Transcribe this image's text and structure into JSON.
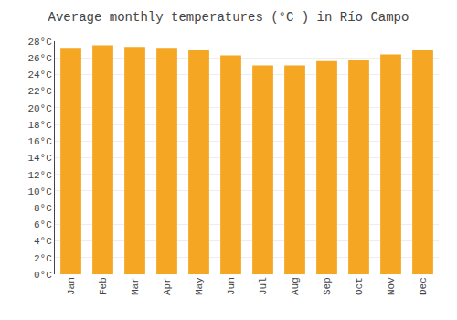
{
  "chart_data": {
    "type": "bar",
    "title": "Average monthly temperatures (°C ) in Río Campo",
    "categories": [
      "Jan",
      "Feb",
      "Mar",
      "Apr",
      "May",
      "Jun",
      "Jul",
      "Aug",
      "Sep",
      "Oct",
      "Nov",
      "Dec"
    ],
    "values": [
      27.1,
      27.5,
      27.3,
      27.1,
      26.9,
      26.3,
      25.1,
      25.1,
      25.6,
      25.7,
      26.4,
      26.9
    ],
    "color": "#F5A623",
    "ylim": [
      0,
      28
    ],
    "yticks": [
      {
        "value": 0,
        "label": "0°C"
      },
      {
        "value": 2,
        "label": "2°C"
      },
      {
        "value": 4,
        "label": "4°C"
      },
      {
        "value": 6,
        "label": "6°C"
      },
      {
        "value": 8,
        "label": "8°C"
      },
      {
        "value": 10,
        "label": "10°C"
      },
      {
        "value": 12,
        "label": "12°C"
      },
      {
        "value": 14,
        "label": "14°C"
      },
      {
        "value": 16,
        "label": "16°C"
      },
      {
        "value": 18,
        "label": "18°C"
      },
      {
        "value": 20,
        "label": "20°C"
      },
      {
        "value": 22,
        "label": "22°C"
      },
      {
        "value": 24,
        "label": "24°C"
      },
      {
        "value": 26,
        "label": "26°C"
      },
      {
        "value": 28,
        "label": "28°C"
      }
    ],
    "grid": true
  }
}
